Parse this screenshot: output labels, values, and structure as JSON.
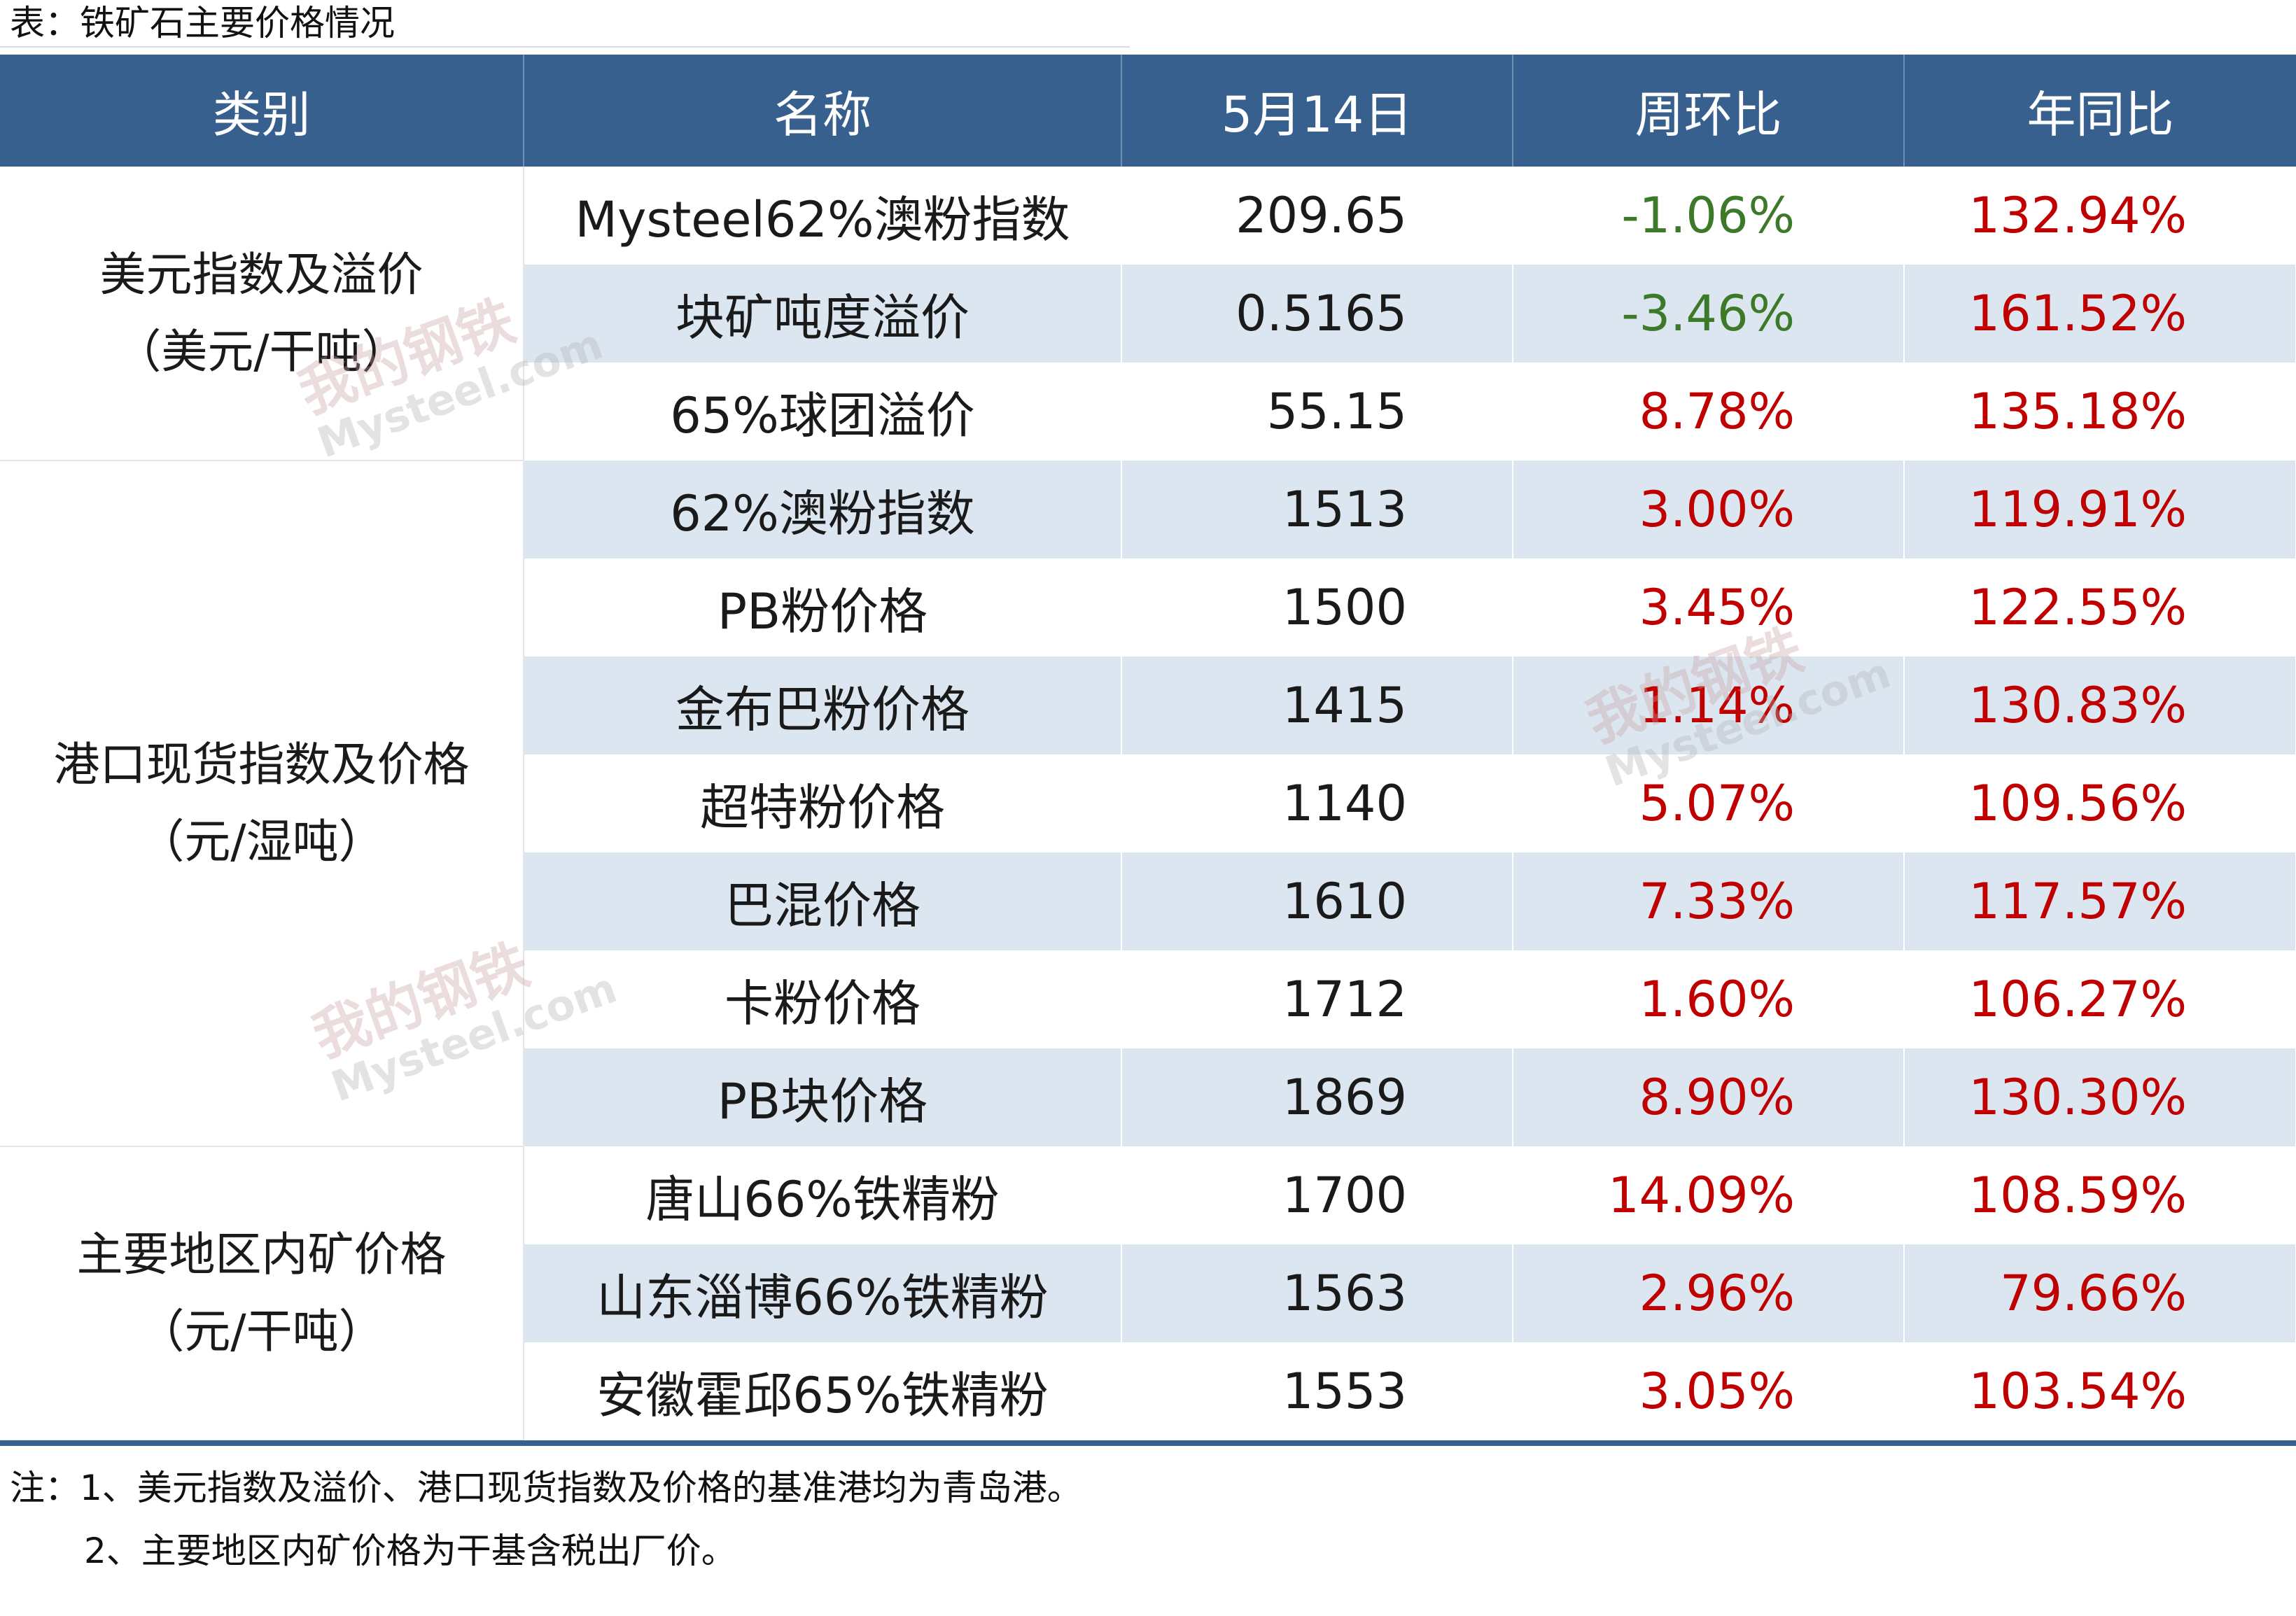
{
  "title": "表：铁矿石主要价格情况",
  "header": [
    "类别",
    "名称",
    "5月14日",
    "周环比",
    "年同比"
  ],
  "groups": [
    {
      "line1": "美元指数及溢价",
      "line2": "（美元/干吨）"
    },
    {
      "line1": "港口现货指数及价格",
      "line2": "（元/湿吨）"
    },
    {
      "line1": "主要地区内矿价格",
      "line2": "（元/干吨）"
    }
  ],
  "rows": [
    {
      "name": "Mysteel62%澳粉指数",
      "value": "209.65",
      "wow": "-1.06%",
      "yoy": "132.94%"
    },
    {
      "name": "块矿吨度溢价",
      "value": "0.5165",
      "wow": "-3.46%",
      "yoy": "161.52%"
    },
    {
      "name": "65%球团溢价",
      "value": "55.15",
      "wow": "8.78%",
      "yoy": "135.18%"
    },
    {
      "name": "62%澳粉指数",
      "value": "1513",
      "wow": "3.00%",
      "yoy": "119.91%"
    },
    {
      "name": "PB粉价格",
      "value": "1500",
      "wow": "3.45%",
      "yoy": "122.55%"
    },
    {
      "name": "金布巴粉价格",
      "value": "1415",
      "wow": "1.14%",
      "yoy": "130.83%"
    },
    {
      "name": "超特粉价格",
      "value": "1140",
      "wow": "5.07%",
      "yoy": "109.56%"
    },
    {
      "name": "巴混价格",
      "value": "1610",
      "wow": "7.33%",
      "yoy": "117.57%"
    },
    {
      "name": "卡粉价格",
      "value": "1712",
      "wow": "1.60%",
      "yoy": "106.27%"
    },
    {
      "name": "PB块价格",
      "value": "1869",
      "wow": "8.90%",
      "yoy": "130.30%"
    },
    {
      "name": "唐山66%铁精粉",
      "value": "1700",
      "wow": "14.09%",
      "yoy": "108.59%"
    },
    {
      "name": "山东淄博66%铁精粉",
      "value": "1563",
      "wow": "2.96%",
      "yoy": "79.66%"
    },
    {
      "name": "安徽霍邱65%铁精粉",
      "value": "1553",
      "wow": "3.05%",
      "yoy": "103.54%"
    }
  ],
  "notes": [
    "注：1、美元指数及溢价、港口现货指数及价格的基准港均为青岛港。",
    "2、主要地区内矿价格为干基含税出厂价。"
  ],
  "watermark": {
    "cn": "我的钢铁",
    "en": "Mysteel.com"
  },
  "colors": {
    "header_bg": "#37608f",
    "alt_row": "#dce6f1",
    "negative": "#3c7a2a",
    "positive": "#c00000"
  }
}
